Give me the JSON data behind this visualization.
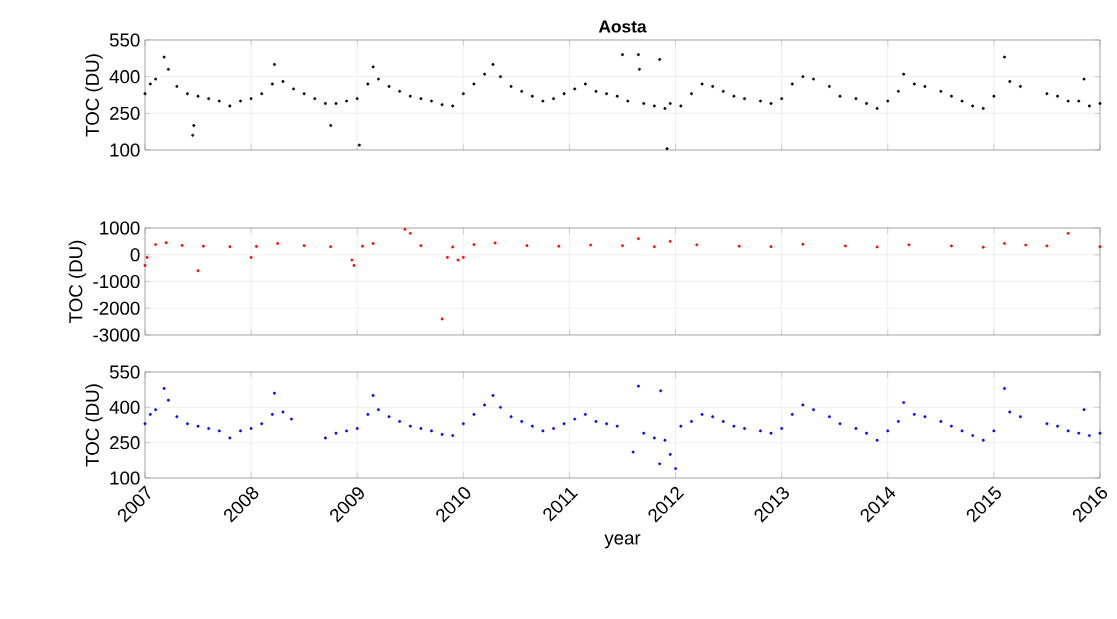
{
  "chart_data": [
    {
      "type": "scatter",
      "title": "Aosta",
      "ylabel": "TOC (DU)",
      "color": "#000000",
      "marker": "circle",
      "grid": true,
      "tick_labels": "y",
      "xlim": [
        2007,
        2016
      ],
      "ylim": [
        100,
        550
      ],
      "xticks": [
        2007,
        2008,
        2009,
        2010,
        2011,
        2012,
        2013,
        2014,
        2015,
        2016
      ],
      "yticks": [
        100,
        250,
        400,
        550
      ],
      "x": [
        2007.0,
        2007.05,
        2007.1,
        2007.18,
        2007.22,
        2007.3,
        2007.4,
        2007.45,
        2007.46,
        2007.5,
        2007.6,
        2007.7,
        2007.8,
        2007.9,
        2008.0,
        2008.1,
        2008.2,
        2008.22,
        2008.3,
        2008.4,
        2008.5,
        2008.6,
        2008.7,
        2008.75,
        2008.8,
        2008.9,
        2009.0,
        2009.02,
        2009.1,
        2009.15,
        2009.2,
        2009.3,
        2009.4,
        2009.5,
        2009.6,
        2009.7,
        2009.8,
        2009.9,
        2010.0,
        2010.1,
        2010.2,
        2010.28,
        2010.35,
        2010.45,
        2010.55,
        2010.65,
        2010.75,
        2010.85,
        2010.95,
        2011.05,
        2011.15,
        2011.25,
        2011.35,
        2011.45,
        2011.5,
        2011.55,
        2011.65,
        2011.66,
        2011.7,
        2011.8,
        2011.85,
        2011.9,
        2011.92,
        2011.95,
        2012.05,
        2012.15,
        2012.25,
        2012.35,
        2012.45,
        2012.55,
        2012.65,
        2012.8,
        2012.9,
        2013.0,
        2013.1,
        2013.2,
        2013.3,
        2013.45,
        2013.55,
        2013.7,
        2013.8,
        2013.9,
        2014.0,
        2014.1,
        2014.15,
        2014.25,
        2014.35,
        2014.5,
        2014.6,
        2014.7,
        2014.8,
        2014.9,
        2015.0,
        2015.1,
        2015.15,
        2015.25,
        2015.5,
        2015.6,
        2015.7,
        2015.8,
        2015.85,
        2015.9,
        2016.0
      ],
      "values": [
        330,
        370,
        390,
        480,
        430,
        360,
        330,
        160,
        200,
        320,
        310,
        300,
        280,
        300,
        310,
        330,
        370,
        450,
        380,
        350,
        330,
        310,
        290,
        200,
        290,
        300,
        310,
        120,
        370,
        440,
        390,
        360,
        340,
        320,
        310,
        300,
        285,
        280,
        330,
        370,
        410,
        450,
        400,
        360,
        340,
        320,
        300,
        310,
        330,
        350,
        370,
        340,
        330,
        320,
        490,
        300,
        490,
        430,
        290,
        280,
        470,
        270,
        105,
        290,
        280,
        330,
        370,
        360,
        340,
        320,
        310,
        300,
        290,
        310,
        370,
        400,
        390,
        360,
        320,
        310,
        290,
        270,
        300,
        340,
        410,
        370,
        360,
        340,
        320,
        300,
        280,
        270,
        320,
        480,
        380,
        360,
        330,
        320,
        300,
        300,
        390,
        280,
        290
      ]
    },
    {
      "type": "scatter",
      "ylabel": "TOC (DU)",
      "color": "#ff0000",
      "marker": "circle",
      "grid": true,
      "tick_labels": "y",
      "xlim": [
        2007,
        2016
      ],
      "ylim": [
        -3000,
        1000
      ],
      "xticks": [
        2007,
        2008,
        2009,
        2010,
        2011,
        2012,
        2013,
        2014,
        2015,
        2016
      ],
      "yticks": [
        -3000,
        -2000,
        -1000,
        0,
        1000
      ],
      "x": [
        2007.0,
        2007.02,
        2007.1,
        2007.2,
        2007.35,
        2007.5,
        2007.55,
        2007.8,
        2008.0,
        2008.05,
        2008.25,
        2008.5,
        2008.75,
        2008.95,
        2008.97,
        2009.05,
        2009.15,
        2009.45,
        2009.5,
        2009.6,
        2009.8,
        2009.85,
        2009.9,
        2009.95,
        2010.0,
        2010.1,
        2010.3,
        2010.6,
        2010.9,
        2011.2,
        2011.5,
        2011.65,
        2011.8,
        2011.95,
        2012.2,
        2012.6,
        2012.9,
        2013.2,
        2013.6,
        2013.9,
        2014.2,
        2014.6,
        2014.9,
        2015.1,
        2015.3,
        2015.5,
        2015.7,
        2016.0
      ],
      "values": [
        -400,
        -100,
        380,
        450,
        350,
        -600,
        320,
        300,
        -100,
        310,
        420,
        340,
        300,
        -200,
        -400,
        320,
        420,
        950,
        800,
        340,
        -2400,
        -100,
        290,
        -200,
        -100,
        380,
        440,
        340,
        320,
        360,
        340,
        600,
        300,
        500,
        370,
        320,
        300,
        390,
        330,
        290,
        370,
        330,
        280,
        420,
        360,
        330,
        800,
        300
      ]
    },
    {
      "type": "scatter",
      "ylabel": "TOC (DU)",
      "xlabel": "year",
      "color": "#0000ff",
      "marker": "circle",
      "grid": true,
      "xlim": [
        2007,
        2016
      ],
      "ylim": [
        100,
        550
      ],
      "xticks": [
        2007,
        2008,
        2009,
        2010,
        2011,
        2012,
        2013,
        2014,
        2015,
        2016
      ],
      "yticks": [
        100,
        250,
        400,
        550
      ],
      "x": [
        2007.0,
        2007.05,
        2007.1,
        2007.18,
        2007.22,
        2007.3,
        2007.4,
        2007.5,
        2007.6,
        2007.7,
        2007.8,
        2007.9,
        2008.0,
        2008.1,
        2008.2,
        2008.22,
        2008.3,
        2008.38,
        2008.7,
        2008.8,
        2008.9,
        2009.0,
        2009.1,
        2009.15,
        2009.2,
        2009.3,
        2009.4,
        2009.5,
        2009.6,
        2009.7,
        2009.8,
        2009.9,
        2010.0,
        2010.1,
        2010.2,
        2010.28,
        2010.35,
        2010.45,
        2010.55,
        2010.65,
        2010.75,
        2010.85,
        2010.95,
        2011.05,
        2011.15,
        2011.25,
        2011.35,
        2011.45,
        2011.6,
        2011.65,
        2011.7,
        2011.8,
        2011.85,
        2011.86,
        2011.9,
        2011.95,
        2012.0,
        2012.05,
        2012.15,
        2012.25,
        2012.35,
        2012.45,
        2012.55,
        2012.65,
        2012.8,
        2012.9,
        2013.0,
        2013.1,
        2013.2,
        2013.3,
        2013.45,
        2013.55,
        2013.7,
        2013.8,
        2013.9,
        2014.0,
        2014.1,
        2014.15,
        2014.25,
        2014.35,
        2014.5,
        2014.6,
        2014.7,
        2014.8,
        2014.9,
        2015.0,
        2015.1,
        2015.15,
        2015.25,
        2015.5,
        2015.6,
        2015.7,
        2015.8,
        2015.85,
        2015.9,
        2016.0
      ],
      "values": [
        330,
        370,
        390,
        480,
        430,
        360,
        330,
        320,
        310,
        300,
        270,
        300,
        310,
        330,
        370,
        460,
        380,
        350,
        270,
        290,
        300,
        310,
        370,
        450,
        390,
        360,
        340,
        320,
        310,
        300,
        285,
        280,
        330,
        370,
        410,
        450,
        400,
        360,
        340,
        320,
        300,
        310,
        330,
        350,
        370,
        340,
        330,
        320,
        210,
        490,
        290,
        270,
        160,
        470,
        260,
        200,
        140,
        320,
        340,
        370,
        360,
        340,
        320,
        310,
        300,
        290,
        310,
        370,
        410,
        390,
        360,
        330,
        310,
        290,
        260,
        300,
        340,
        420,
        370,
        360,
        340,
        320,
        300,
        280,
        260,
        300,
        480,
        380,
        360,
        330,
        320,
        300,
        290,
        390,
        280,
        290
      ]
    }
  ]
}
